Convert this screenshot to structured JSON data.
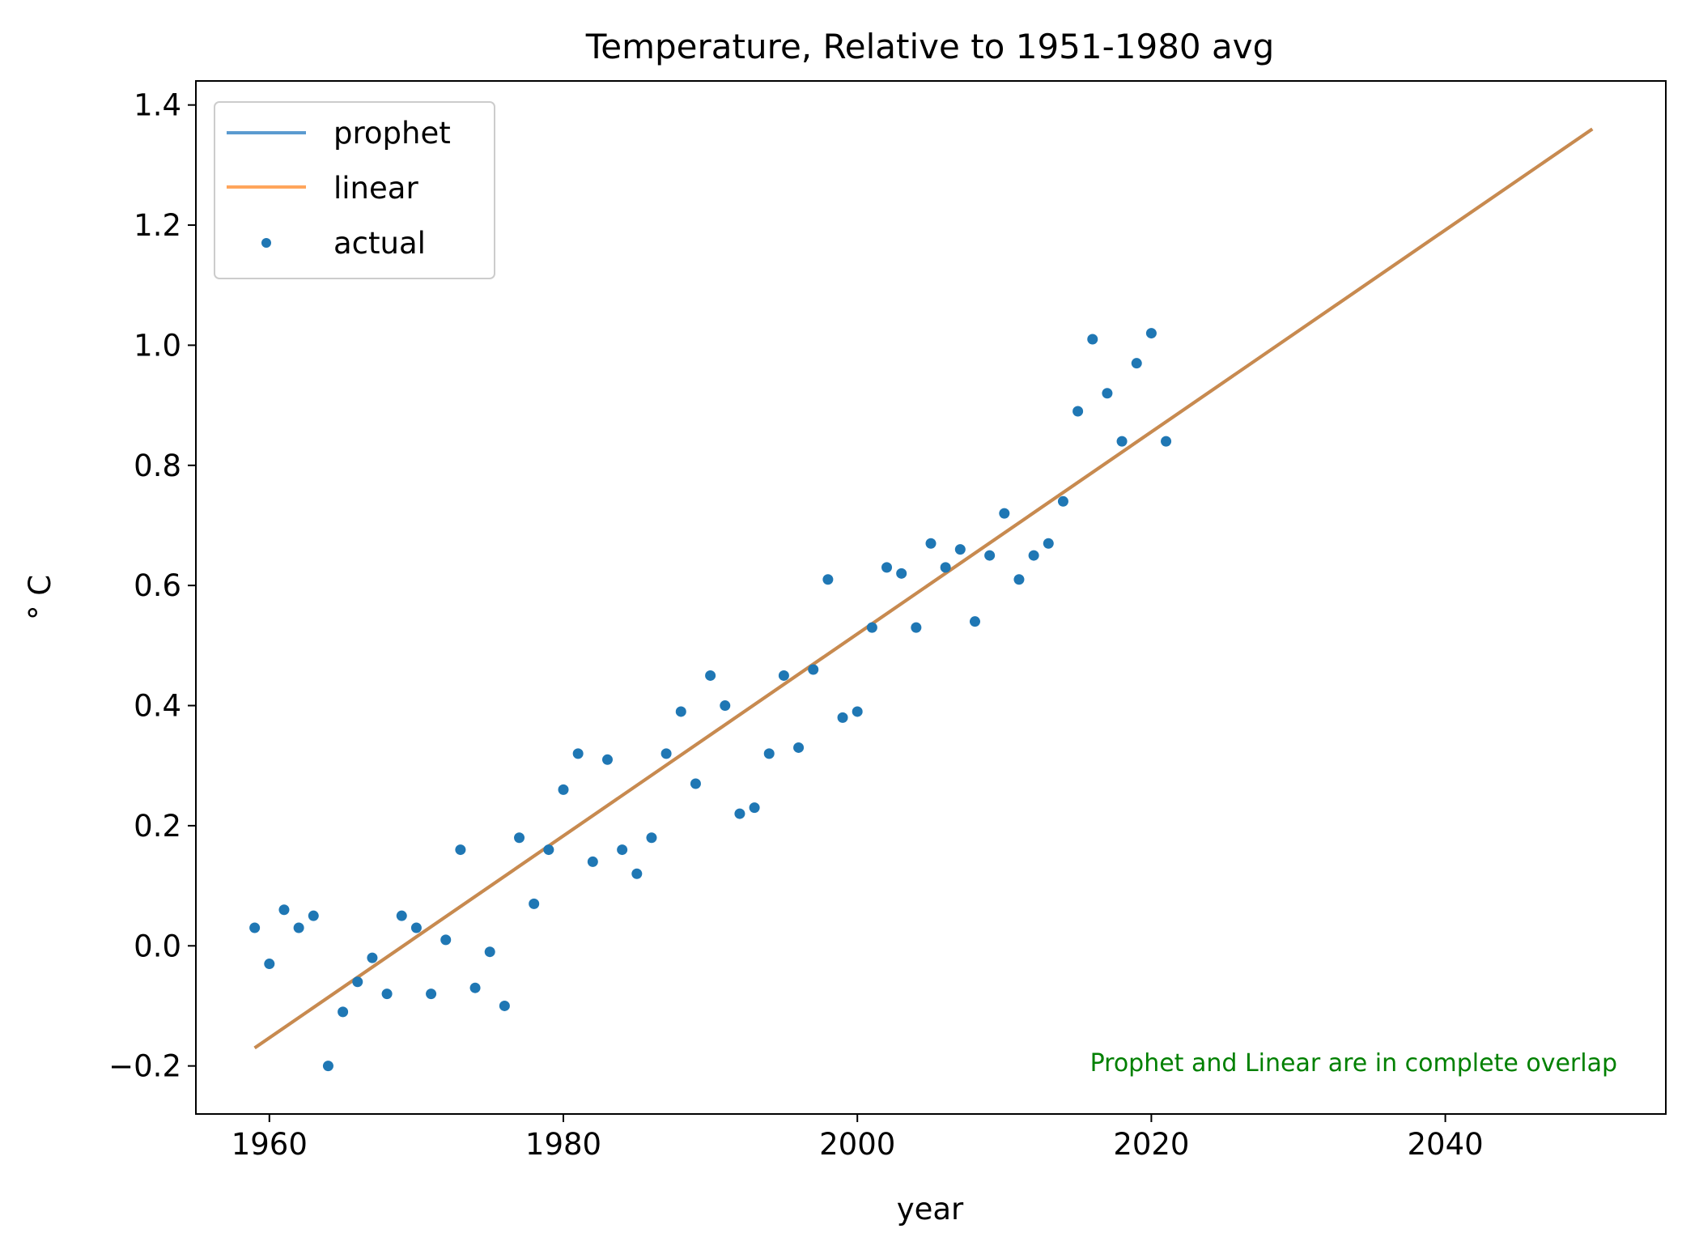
{
  "chart_data": {
    "type": "scatter",
    "title": "Temperature, Relative to 1951-1980 avg",
    "xlabel": "year",
    "ylabel": "° C",
    "xlim": [
      1955,
      2055
    ],
    "ylim": [
      -0.28,
      1.44
    ],
    "xticks": [
      1960,
      1980,
      2000,
      2020,
      2040
    ],
    "yticks": [
      -0.2,
      0.0,
      0.2,
      0.4,
      0.6,
      0.8,
      1.0,
      1.2,
      1.4
    ],
    "ytick_labels": [
      "−0.2",
      "0.0",
      "0.2",
      "0.4",
      "0.6",
      "0.8",
      "1.0",
      "1.2",
      "1.4"
    ],
    "grid": false,
    "legend_position": "upper-left",
    "annotation": "Prophet and Linear are in complete overlap",
    "series": [
      {
        "name": "prophet",
        "kind": "line",
        "color": "#5b9bd0",
        "x": [
          1959,
          2050
        ],
        "y": [
          -0.17,
          1.36
        ]
      },
      {
        "name": "linear",
        "kind": "line",
        "color": "#ffa55c",
        "x": [
          1959,
          2050
        ],
        "y": [
          -0.17,
          1.36
        ]
      },
      {
        "name": "actual",
        "kind": "scatter",
        "color": "#1f77b4",
        "x": [
          1959,
          1960,
          1961,
          1962,
          1963,
          1964,
          1965,
          1966,
          1967,
          1968,
          1969,
          1970,
          1971,
          1972,
          1973,
          1974,
          1975,
          1976,
          1977,
          1978,
          1979,
          1980,
          1981,
          1982,
          1983,
          1984,
          1985,
          1986,
          1987,
          1988,
          1989,
          1990,
          1991,
          1992,
          1993,
          1994,
          1995,
          1996,
          1997,
          1998,
          1999,
          2000,
          2001,
          2002,
          2003,
          2004,
          2005,
          2006,
          2007,
          2008,
          2009,
          2010,
          2011,
          2012,
          2013,
          2014,
          2015,
          2016,
          2017,
          2018,
          2019,
          2020,
          2021
        ],
        "y": [
          0.03,
          -0.03,
          0.06,
          0.03,
          0.05,
          -0.2,
          -0.11,
          -0.06,
          -0.02,
          -0.08,
          0.05,
          0.03,
          -0.08,
          0.01,
          0.16,
          -0.07,
          -0.01,
          -0.1,
          0.18,
          0.07,
          0.16,
          0.26,
          0.32,
          0.14,
          0.31,
          0.16,
          0.12,
          0.18,
          0.32,
          0.39,
          0.27,
          0.45,
          0.4,
          0.22,
          0.23,
          0.32,
          0.45,
          0.33,
          0.46,
          0.61,
          0.38,
          0.39,
          0.53,
          0.63,
          0.62,
          0.53,
          0.67,
          0.63,
          0.66,
          0.54,
          0.65,
          0.72,
          0.61,
          0.65,
          0.67,
          0.74,
          0.89,
          1.01,
          0.92,
          0.84,
          0.97,
          1.02,
          0.84
        ]
      }
    ]
  }
}
